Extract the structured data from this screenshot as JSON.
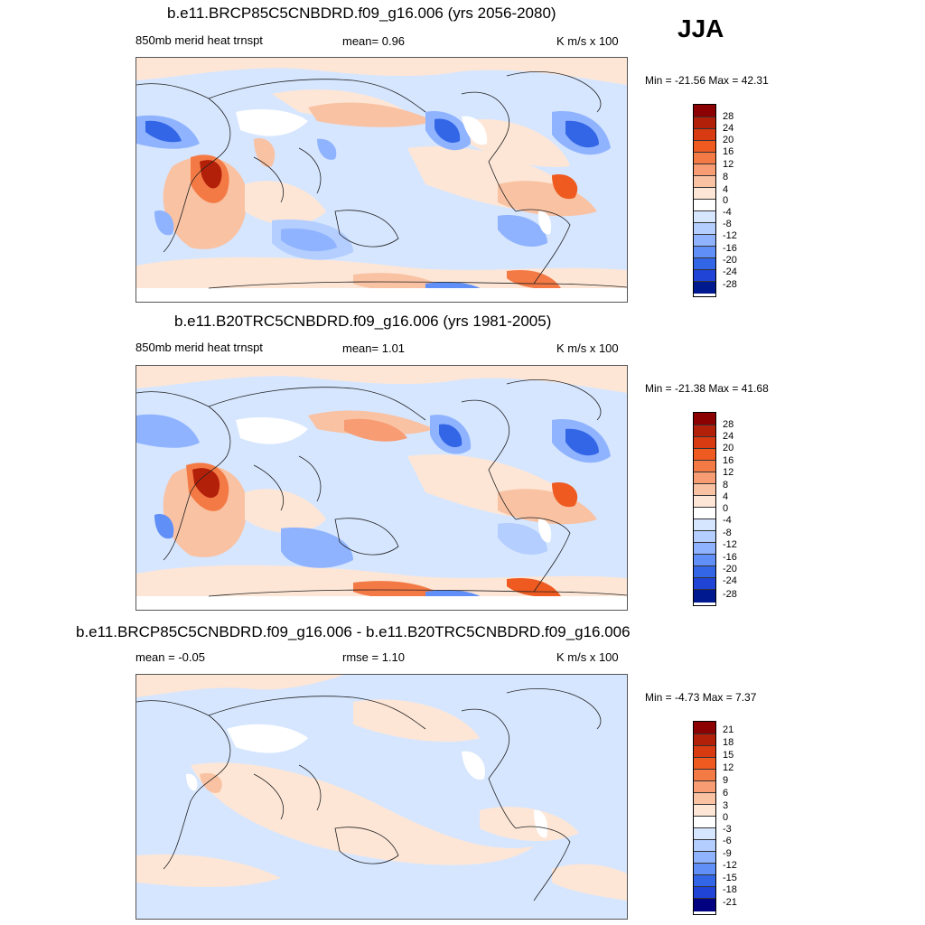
{
  "season": "JJA",
  "panels": [
    {
      "title": "b.e11.BRCP85C5CNBDRD.f09_g16.006 (yrs 2056-2080)",
      "left_label": "850mb merid heat trnspt",
      "center_label": "mean=   0.96",
      "right_label": "K m/s x 100",
      "minmax": "Min = -21.56 Max =  42.31"
    },
    {
      "title": "b.e11.B20TRC5CNBDRD.f09_g16.006 (yrs 1981-2005)",
      "left_label": "850mb merid heat trnspt",
      "center_label": "mean=   1.01",
      "right_label": "K m/s x 100",
      "minmax": "Min = -21.38 Max =  41.68"
    },
    {
      "title": "b.e11.BRCP85C5CNBDRD.f09_g16.006 - b.e11.B20TRC5CNBDRD.f09_g16.006",
      "left_label": "mean =  -0.05",
      "center_label": "rmse =   1.10",
      "right_label": "K m/s x 100",
      "minmax": "Min =  -4.73 Max =   7.37"
    }
  ],
  "colorbar_colors": [
    "#8b0000",
    "#b3200a",
    "#d83a12",
    "#ee5a20",
    "#f47a45",
    "#f79c73",
    "#f9c2a3",
    "#fde6d6",
    "#ffffff",
    "#d6e6ff",
    "#b3ceff",
    "#8fb3ff",
    "#5f8ff7",
    "#3366e6",
    "#1f44d6",
    "#0f2ab8",
    "#00198f",
    "#000080"
  ],
  "colorbar_labels_main": [
    "28",
    "24",
    "20",
    "16",
    "12",
    "8",
    "4",
    "0",
    "-4",
    "-8",
    "-12",
    "-16",
    "-20",
    "-24",
    "-28"
  ],
  "colorbar_labels_diff": [
    "21",
    "18",
    "15",
    "12",
    "9",
    "6",
    "3",
    "0",
    "-3",
    "-6",
    "-9",
    "-12",
    "-15",
    "-18",
    "-21"
  ]
}
